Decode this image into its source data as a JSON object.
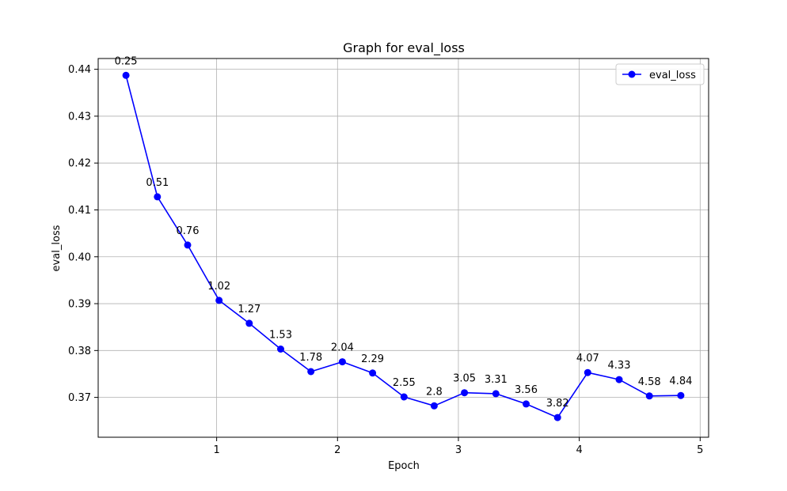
{
  "chart_data": {
    "type": "line",
    "title": "Graph for eval_loss",
    "xlabel": "Epoch",
    "ylabel": "eval_loss",
    "xlim": [
      0.02,
      5.07
    ],
    "ylim": [
      0.3615,
      0.4423
    ],
    "xticks": [
      1,
      2,
      3,
      4,
      5
    ],
    "yticks": [
      0.37,
      0.38,
      0.39,
      0.4,
      0.41,
      0.42,
      0.43,
      0.44
    ],
    "ytick_labels": [
      "0.37",
      "0.38",
      "0.39",
      "0.40",
      "0.41",
      "0.42",
      "0.43",
      "0.44"
    ],
    "grid": true,
    "legend_position": "top-right",
    "series": [
      {
        "name": "eval_loss",
        "color": "#0000ff",
        "marker": "circle",
        "x": [
          0.25,
          0.51,
          0.76,
          1.02,
          1.27,
          1.53,
          1.78,
          2.04,
          2.29,
          2.55,
          2.8,
          3.05,
          3.31,
          3.56,
          3.82,
          4.07,
          4.33,
          4.58,
          4.84
        ],
        "y": [
          0.4387,
          0.4128,
          0.4025,
          0.3907,
          0.3858,
          0.3803,
          0.3755,
          0.3776,
          0.3752,
          0.3701,
          0.3682,
          0.371,
          0.3708,
          0.3686,
          0.3657,
          0.3753,
          0.3738,
          0.3703,
          0.3704
        ],
        "point_labels": [
          "0.25",
          "0.51",
          "0.76",
          "1.02",
          "1.27",
          "1.53",
          "1.78",
          "2.04",
          "2.29",
          "2.55",
          "2.8",
          "3.05",
          "3.31",
          "3.56",
          "3.82",
          "4.07",
          "4.33",
          "4.58",
          "4.84"
        ]
      }
    ]
  }
}
